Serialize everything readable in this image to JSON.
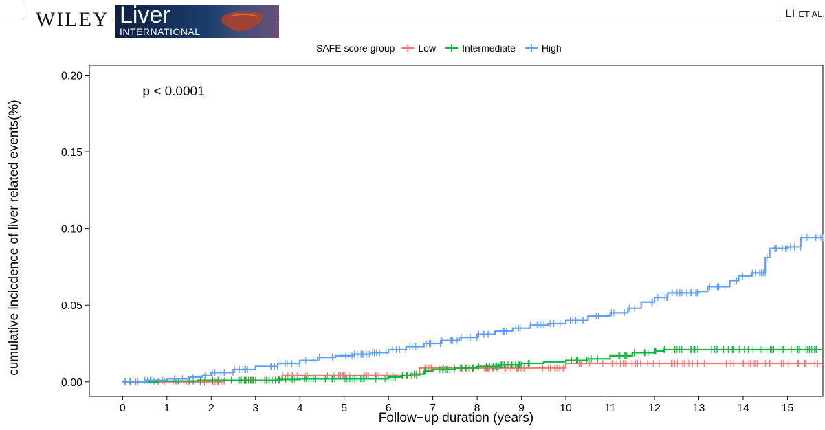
{
  "header": {
    "publisher": "WILEY",
    "journal_word": "Liver",
    "journal_sub": "INTERNATIONAL",
    "author_main": "LI",
    "author_suffix": "ET AL."
  },
  "chart_data": {
    "type": "line",
    "title": "",
    "xlabel": "Follow−up duration (years)",
    "ylabel": "cumulative incicdence of liver related events(%)",
    "xlim": [
      -0.75,
      15.8
    ],
    "ylim": [
      -0.0095,
      0.2065
    ],
    "x_ticks": [
      0,
      1,
      2,
      3,
      4,
      5,
      6,
      7,
      8,
      9,
      10,
      11,
      12,
      13,
      14,
      15
    ],
    "x_tick_labels": [
      "0",
      "1",
      "2",
      "3",
      "4",
      "5",
      "6",
      "7",
      "8",
      "9",
      "10",
      "11",
      "12",
      "13",
      "14",
      "15"
    ],
    "y_ticks": [
      0.0,
      0.05,
      0.1,
      0.15,
      0.2
    ],
    "y_tick_labels": [
      "0.00",
      "0.05",
      "0.10",
      "0.15",
      "0.20"
    ],
    "grid": false,
    "legend": {
      "title": "SAFE score group",
      "position": "top"
    },
    "annotation": "p < 0.0001",
    "censor_marks": true,
    "series": [
      {
        "name": "Low",
        "color": "#F8766D",
        "x": [
          0,
          2.3,
          3.6,
          6.7,
          10.0,
          15.8
        ],
        "y": [
          0,
          0.001,
          0.004,
          0.009,
          0.012,
          0.012
        ]
      },
      {
        "name": "Intermediate",
        "color": "#00BA38",
        "x": [
          0,
          0.8,
          1.7,
          3.5,
          4.0,
          6.0,
          6.3,
          6.5,
          6.8,
          7.0,
          7.5,
          8.0,
          8.5,
          9.0,
          9.5,
          10.0,
          10.5,
          11.0,
          11.5,
          12.0,
          12.2,
          15.8
        ],
        "y": [
          0,
          0.0005,
          0.001,
          0.0015,
          0.002,
          0.003,
          0.004,
          0.005,
          0.007,
          0.008,
          0.009,
          0.01,
          0.011,
          0.012,
          0.013,
          0.014,
          0.015,
          0.017,
          0.019,
          0.02,
          0.021,
          0.021
        ]
      },
      {
        "name": "High",
        "color": "#619CFF",
        "x": [
          0,
          0.5,
          1.0,
          1.5,
          1.8,
          2.0,
          2.5,
          3.0,
          3.5,
          4.0,
          4.4,
          4.8,
          5.2,
          5.6,
          6.0,
          6.4,
          6.8,
          7.2,
          7.6,
          8.0,
          8.4,
          8.8,
          9.2,
          9.6,
          10.0,
          10.5,
          11.0,
          11.4,
          11.7,
          12.0,
          12.3,
          13.0,
          13.2,
          13.7,
          13.9,
          14.2,
          14.5,
          14.6,
          15.0,
          15.3,
          15.8
        ],
        "y": [
          0,
          0.001,
          0.002,
          0.003,
          0.004,
          0.006,
          0.008,
          0.01,
          0.012,
          0.014,
          0.016,
          0.017,
          0.018,
          0.019,
          0.021,
          0.023,
          0.025,
          0.027,
          0.029,
          0.031,
          0.033,
          0.035,
          0.037,
          0.038,
          0.04,
          0.043,
          0.045,
          0.048,
          0.052,
          0.055,
          0.058,
          0.059,
          0.062,
          0.066,
          0.069,
          0.071,
          0.081,
          0.087,
          0.088,
          0.094,
          0.094
        ]
      }
    ]
  }
}
